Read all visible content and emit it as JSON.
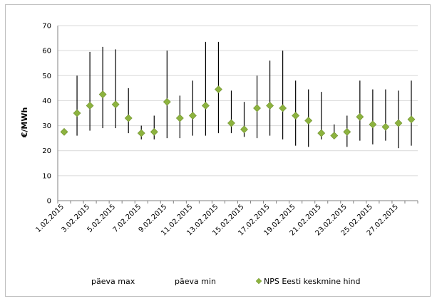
{
  "chart_data": {
    "type": "scatter",
    "title": "",
    "ylabel": "€/MWh",
    "xlabel": "",
    "ylim": [
      0,
      70
    ],
    "yticks": [
      0,
      10,
      20,
      30,
      40,
      50,
      60,
      70
    ],
    "grid": "horizontal",
    "legend_placement": "bottom",
    "categories": [
      "1.02.2015",
      "2.02.2015",
      "3.02.2015",
      "4.02.2015",
      "5.02.2015",
      "6.02.2015",
      "7.02.2015",
      "8.02.2015",
      "9.02.2015",
      "10.02.2015",
      "11.02.2015",
      "12.02.2015",
      "13.02.2015",
      "14.02.2015",
      "15.02.2015",
      "16.02.2015",
      "17.02.2015",
      "18.02.2015",
      "19.02.2015",
      "20.02.2015",
      "21.02.2015",
      "22.02.2015",
      "23.02.2015",
      "24.02.2015",
      "25.02.2015",
      "26.02.2015",
      "27.02.2015",
      "28.02.2015"
    ],
    "tick_labels": [
      "1.02.2015",
      "3.02.2015",
      "5.02.2015",
      "7.02.2015",
      "9.02.2015",
      "11.02.2015",
      "13.02.2015",
      "15.02.2015",
      "17.02.2015",
      "19.02.2015",
      "21.02.2015",
      "23.02.2015",
      "25.02.2015",
      "27.02.2015"
    ],
    "series": [
      {
        "name": "päeva max",
        "values": [
          28,
          50,
          59.5,
          61.5,
          60.5,
          45,
          30,
          34,
          60,
          42,
          48,
          63.5,
          63.5,
          44,
          39.5,
          50,
          56,
          60,
          48,
          44.5,
          43.5,
          30.5,
          34,
          48,
          44.5,
          44.5,
          44,
          48
        ]
      },
      {
        "name": "päeva min",
        "values": [
          27,
          26,
          28,
          29,
          29,
          27,
          24.5,
          24.5,
          25,
          25,
          26,
          26,
          27,
          27,
          25.5,
          25,
          26,
          24.5,
          22,
          21.5,
          24.5,
          25.5,
          21.5,
          24,
          22.5,
          24,
          21,
          22
        ]
      },
      {
        "name": "NPS Eesti keskmine hind",
        "values": [
          27.5,
          35,
          38,
          42.5,
          38.5,
          33,
          27,
          27.5,
          39.5,
          33,
          34,
          38,
          44.5,
          31,
          28.5,
          37,
          38,
          37,
          34,
          32,
          27,
          26,
          27.5,
          33.5,
          30.5,
          29.5,
          31,
          32.5
        ]
      }
    ],
    "colors": {
      "range_line": "#000000",
      "marker": "#8db33f",
      "marker_edge": "#6e8f2e",
      "grid": "#d9d9d9"
    }
  }
}
